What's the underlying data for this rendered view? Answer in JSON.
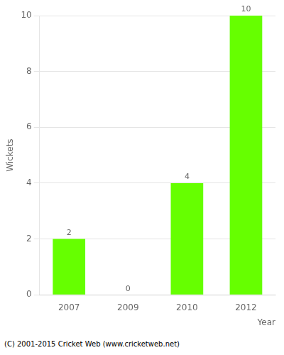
{
  "chart_data": {
    "type": "bar",
    "categories": [
      "2007",
      "2009",
      "2010",
      "2012"
    ],
    "values": [
      2,
      0,
      4,
      10
    ],
    "color": "#66FF00",
    "xlabel": "Year",
    "ylabel": "Wickets",
    "ylim": [
      0,
      10
    ],
    "yticks": [
      0,
      2,
      4,
      6,
      8,
      10
    ],
    "grid": true,
    "data_labels": true,
    "annotations": [
      "(C) 2001-2015 Cricket Web (www.cricketweb.net)"
    ]
  }
}
